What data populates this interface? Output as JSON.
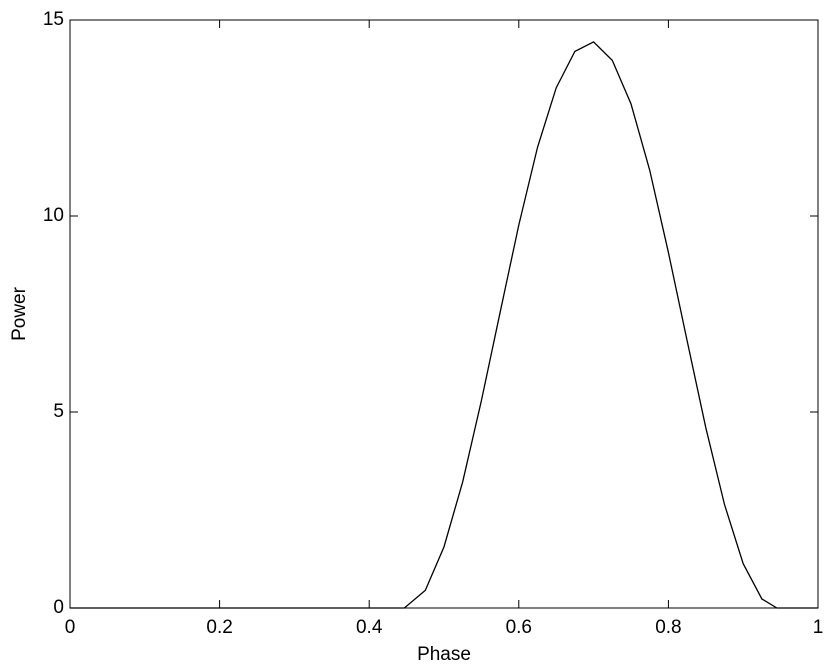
{
  "chart_data": {
    "type": "line",
    "x_label": "Phase",
    "y_label": "Power",
    "series": [
      {
        "color": "#000000",
        "x": [
          0,
          0.447,
          0.475,
          0.5,
          0.525,
          0.55,
          0.575,
          0.6,
          0.625,
          0.65,
          0.675,
          0.7,
          0.725,
          0.75,
          0.775,
          0.8,
          0.825,
          0.85,
          0.875,
          0.9,
          0.925,
          0.945,
          1
        ],
        "values": [
          0,
          0,
          0.45,
          1.56,
          3.22,
          5.29,
          7.54,
          9.77,
          11.75,
          13.27,
          14.2,
          14.44,
          13.97,
          12.86,
          11.17,
          9.07,
          6.82,
          4.6,
          2.64,
          1.13,
          0.23,
          0,
          0
        ]
      }
    ],
    "xlim": [
      0,
      1
    ],
    "xticks": [
      0,
      0.2,
      0.4,
      0.6,
      0.8,
      1
    ],
    "ylim": [
      0,
      15
    ],
    "yticks": [
      0,
      5,
      10,
      15
    ],
    "grid": false
  }
}
